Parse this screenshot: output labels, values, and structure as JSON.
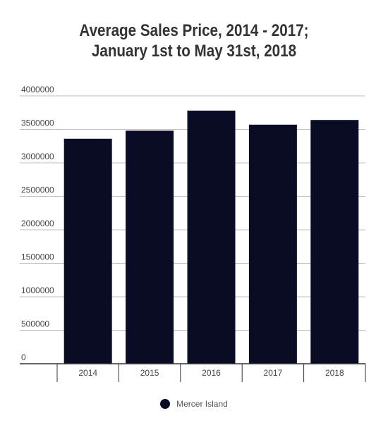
{
  "title_lines": [
    "Average Sales Price, 2014 - 2017;",
    "January 1st to May 31st, 2018"
  ],
  "colors": {
    "bar": "#0a0b24",
    "grid": "#bdbdbd",
    "axis": "#333333",
    "text": "#444444",
    "title": "#333333"
  },
  "chart_data": {
    "type": "bar",
    "title": "Average Sales Price, 2014 - 2017; January 1st to May 31st, 2018",
    "categories": [
      "2014",
      "2015",
      "2016",
      "2017",
      "2018"
    ],
    "series": [
      {
        "name": "Mercer Island",
        "values": [
          3360000,
          3480000,
          3780000,
          3570000,
          3640000
        ]
      }
    ],
    "ylim": [
      0,
      4000000
    ],
    "yticks": [
      "0",
      "500000",
      "1000000",
      "1500000",
      "2000000",
      "2500000",
      "3000000",
      "3500000",
      "4000000"
    ],
    "grid": true,
    "legend_position": "bottom-center"
  }
}
